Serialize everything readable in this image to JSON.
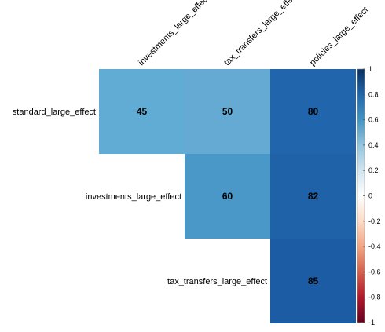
{
  "chart_data": {
    "type": "heatmap",
    "title": "",
    "xlabel": "",
    "ylabel": "",
    "columns": [
      "investments_large_effect",
      "tax_transfers_large_effect",
      "policies_large_effect"
    ],
    "rows": [
      "standard_large_effect",
      "investments_large_effect",
      "tax_transfers_large_effect"
    ],
    "values": [
      [
        45,
        50,
        80
      ],
      [
        null,
        60,
        82
      ],
      [
        null,
        null,
        85
      ]
    ],
    "colors": [
      [
        "#60acd4",
        "#64aad3",
        "#2166ac"
      ],
      [
        null,
        "#4a98c8",
        "#1f62a8"
      ],
      [
        null,
        null,
        "#1c5ca4"
      ]
    ],
    "colorbar": {
      "ticks": [
        "1",
        "0.8",
        "0.6",
        "0.4",
        "0.2",
        "0",
        "-0.2",
        "-0.4",
        "-0.6",
        "-0.8",
        "-1"
      ],
      "range": [
        -1,
        1
      ],
      "gradient": [
        "#053061",
        "#2166ac",
        "#4393c3",
        "#92c5de",
        "#d1e5f0",
        "#ffffff",
        "#fddbc7",
        "#f4a582",
        "#d6604d",
        "#b2182b",
        "#67001f"
      ]
    },
    "grid": false,
    "legend": "right"
  }
}
